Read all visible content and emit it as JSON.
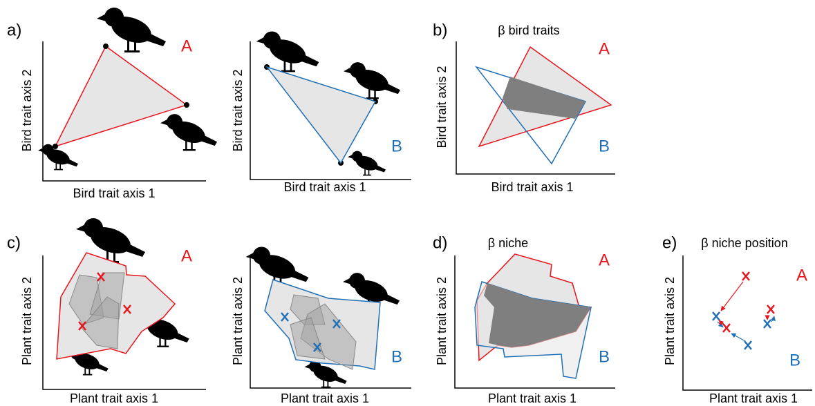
{
  "panels": [
    {
      "label": "a)",
      "x_axis": "Bird trait axis 1",
      "y_axis": "Bird trait axis 2",
      "group": "A"
    },
    {
      "x_axis": "Bird trait axis 1",
      "y_axis": "Bird trait axis 2",
      "group": "B"
    },
    {
      "label": "b)",
      "title": "β bird traits",
      "x_axis": "Bird trait axis 1",
      "y_axis": "Bird trait axis 2",
      "groups": [
        "A",
        "B"
      ]
    },
    {
      "label": "c)",
      "x_axis": "Plant trait axis 1",
      "y_axis": "Plant trait axis 2",
      "group": "A"
    },
    {
      "x_axis": "Plant trait axis 1",
      "y_axis": "Plant trait axis 2",
      "group": "B"
    },
    {
      "label": "d)",
      "title": "β niche",
      "x_axis": "Plant trait axis 1",
      "y_axis": "Plant trait axis 2",
      "groups": [
        "A",
        "B"
      ]
    },
    {
      "label": "e)",
      "title": "β niche position",
      "x_axis": "Plant trait axis 1",
      "y_axis": "Plant trait axis 2",
      "groups": [
        "A",
        "B"
      ]
    }
  ]
}
